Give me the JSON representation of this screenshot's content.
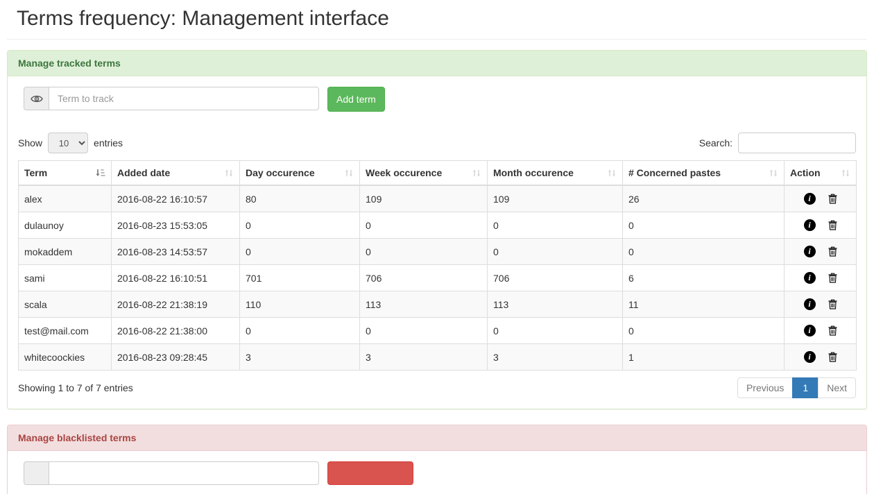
{
  "page": {
    "title": "Terms frequency: Management interface"
  },
  "tracked_panel": {
    "title": "Manage tracked terms",
    "add_form": {
      "addon_icon": "eye-icon",
      "input_placeholder": "Term to track",
      "input_value": "",
      "button_label": "Add term"
    },
    "controls": {
      "show_label": "Show",
      "page_length": "10",
      "entries_label": "entries",
      "search_label": "Search:",
      "search_value": ""
    },
    "table": {
      "columns": [
        {
          "label": "Term",
          "sort": "asc"
        },
        {
          "label": "Added date",
          "sort": "none"
        },
        {
          "label": "Day occurence",
          "sort": "none"
        },
        {
          "label": "Week occurence",
          "sort": "none"
        },
        {
          "label": "Month occurence",
          "sort": "none"
        },
        {
          "label": "# Concerned pastes",
          "sort": "none"
        },
        {
          "label": "Action",
          "sort": "none"
        }
      ],
      "row_action_icons": [
        "info-circle-icon",
        "trash-icon"
      ],
      "rows": [
        {
          "term": "alex",
          "added_date": "2016-08-22 16:10:57",
          "day": "80",
          "week": "109",
          "month": "109",
          "pastes": "26"
        },
        {
          "term": "dulaunoy",
          "added_date": "2016-08-23 15:53:05",
          "day": "0",
          "week": "0",
          "month": "0",
          "pastes": "0"
        },
        {
          "term": "mokaddem",
          "added_date": "2016-08-23 14:53:57",
          "day": "0",
          "week": "0",
          "month": "0",
          "pastes": "0"
        },
        {
          "term": "sami",
          "added_date": "2016-08-22 16:10:51",
          "day": "701",
          "week": "706",
          "month": "706",
          "pastes": "6"
        },
        {
          "term": "scala",
          "added_date": "2016-08-22 21:38:19",
          "day": "110",
          "week": "113",
          "month": "113",
          "pastes": "11"
        },
        {
          "term": "test@mail.com",
          "added_date": "2016-08-22 21:38:00",
          "day": "0",
          "week": "0",
          "month": "0",
          "pastes": "0"
        },
        {
          "term": "whitecoockies",
          "added_date": "2016-08-23 09:28:45",
          "day": "3",
          "week": "3",
          "month": "3",
          "pastes": "1"
        }
      ],
      "info": "Showing 1 to 7 of 7 entries",
      "pagination": {
        "previous": "Previous",
        "page": "1",
        "active_page": "1",
        "next": "Next"
      }
    }
  },
  "blacklist_panel": {
    "title": "Manage blacklisted terms",
    "add_form": {
      "input_placeholder": "",
      "input_value": "",
      "button_label": ""
    }
  },
  "colors": {
    "success_heading_bg": "#dff0d8",
    "success_heading_text": "#3c763d",
    "success_border": "#d6e9c6",
    "danger_heading_bg": "#f2dede",
    "danger_heading_text": "#a94442",
    "danger_border": "#ebccd1",
    "btn_success": "#5cb85c",
    "btn_danger": "#d9534f",
    "pagination_active": "#337ab7",
    "table_border": "#ddd",
    "stripe_bg": "#f9f9f9"
  }
}
